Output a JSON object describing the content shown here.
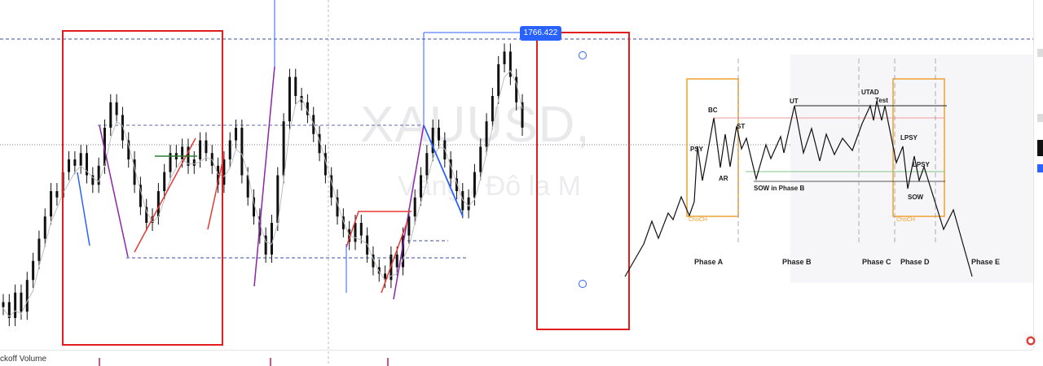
{
  "chart_data": {
    "type": "line",
    "symbol": "XAUUSD,",
    "symbol_desc": "Vàng / Đô la M",
    "price_tag": "1766.422",
    "volume_indicator_label": "ckoff Volume",
    "candles": [
      [
        0,
        0.15
      ],
      [
        1,
        0.1
      ],
      [
        2,
        0.18
      ],
      [
        3,
        0.12
      ],
      [
        4,
        0.22
      ],
      [
        5,
        0.28
      ],
      [
        6,
        0.35
      ],
      [
        7,
        0.42
      ],
      [
        8,
        0.5
      ],
      [
        9,
        0.48
      ],
      [
        10,
        0.56
      ],
      [
        11,
        0.6
      ],
      [
        12,
        0.58
      ],
      [
        13,
        0.62
      ],
      [
        14,
        0.55
      ],
      [
        15,
        0.52
      ],
      [
        16,
        0.58
      ],
      [
        17,
        0.7
      ],
      [
        18,
        0.78
      ],
      [
        19,
        0.74
      ],
      [
        20,
        0.66
      ],
      [
        21,
        0.6
      ],
      [
        22,
        0.52
      ],
      [
        23,
        0.45
      ],
      [
        24,
        0.4
      ],
      [
        25,
        0.42
      ],
      [
        26,
        0.5
      ],
      [
        27,
        0.56
      ],
      [
        28,
        0.62
      ],
      [
        29,
        0.6
      ],
      [
        30,
        0.64
      ],
      [
        31,
        0.58
      ],
      [
        32,
        0.6
      ],
      [
        33,
        0.66
      ],
      [
        34,
        0.62
      ],
      [
        35,
        0.58
      ],
      [
        36,
        0.52
      ],
      [
        37,
        0.6
      ],
      [
        38,
        0.66
      ],
      [
        39,
        0.7
      ],
      [
        40,
        0.55
      ],
      [
        41,
        0.48
      ],
      [
        42,
        0.42
      ],
      [
        43,
        0.36
      ],
      [
        44,
        0.3
      ],
      [
        45,
        0.4
      ],
      [
        46,
        0.55
      ],
      [
        47,
        0.72
      ],
      [
        48,
        0.86
      ],
      [
        49,
        0.8
      ],
      [
        50,
        0.78
      ],
      [
        51,
        0.74
      ],
      [
        52,
        0.68
      ],
      [
        53,
        0.62
      ],
      [
        54,
        0.55
      ],
      [
        55,
        0.48
      ],
      [
        56,
        0.42
      ],
      [
        57,
        0.38
      ],
      [
        58,
        0.34
      ],
      [
        59,
        0.4
      ],
      [
        60,
        0.36
      ],
      [
        61,
        0.3
      ],
      [
        62,
        0.26
      ],
      [
        63,
        0.24
      ],
      [
        64,
        0.22
      ],
      [
        65,
        0.3
      ],
      [
        66,
        0.26
      ],
      [
        67,
        0.36
      ],
      [
        68,
        0.42
      ],
      [
        69,
        0.48
      ],
      [
        70,
        0.55
      ],
      [
        71,
        0.62
      ],
      [
        72,
        0.7
      ],
      [
        73,
        0.66
      ],
      [
        74,
        0.6
      ],
      [
        75,
        0.54
      ],
      [
        76,
        0.5
      ],
      [
        77,
        0.44
      ],
      [
        78,
        0.48
      ],
      [
        79,
        0.56
      ],
      [
        80,
        0.64
      ],
      [
        81,
        0.72
      ],
      [
        82,
        0.8
      ],
      [
        83,
        0.9
      ],
      [
        84,
        0.94
      ],
      [
        85,
        0.86
      ],
      [
        86,
        0.78
      ],
      [
        87,
        0.7
      ]
    ],
    "wyckoff_labels": {
      "psy": "PSY",
      "bc": "BC",
      "st": "ST",
      "ar": "AR",
      "sow_b": "SOW in Phase B",
      "ut": "UT",
      "utad": "UTAD",
      "test": "Test",
      "lpsy1": "LPSY",
      "lpsy2": "LPSY",
      "sow": "SOW",
      "choch_left": "ChoCH",
      "choch_right": "ChoCH"
    },
    "phases": [
      "Phase A",
      "Phase B",
      "Phase C",
      "Phase D",
      "Phase E"
    ],
    "colors": {
      "rect_red": "#e11d1d",
      "choch_box": "#f0a030",
      "purple": "#8e24aa",
      "red_line": "#e53935",
      "green": "#2e7d32",
      "blue": "#2962ff",
      "candle": "#111111"
    }
  }
}
